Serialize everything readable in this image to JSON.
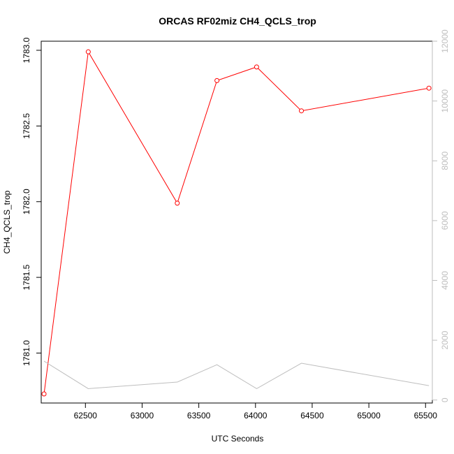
{
  "chart_data": {
    "type": "line",
    "title": "ORCAS RF02miz CH4_QCLS_trop",
    "xlabel": "UTC Seconds",
    "ylabel": "CH4_QCLS_trop",
    "xlim": [
      62110,
      65560
    ],
    "ylim": [
      1780.67,
      1783.06
    ],
    "x_ticks": [
      62500,
      63000,
      63500,
      64000,
      64500,
      65000,
      65500
    ],
    "y_ticks": [
      1781.0,
      1781.5,
      1782.0,
      1782.5,
      1783.0
    ],
    "y2_ticks": [
      0,
      2000,
      4000,
      6000,
      8000,
      10000,
      12000
    ],
    "y2lim": [
      -100,
      12000
    ],
    "grid": false,
    "series": [
      {
        "color": "#ff0000",
        "marker": "circle-open",
        "x": [
          62135,
          62525,
          63310,
          63660,
          64010,
          64405,
          65530
        ],
        "y": [
          1780.73,
          1782.99,
          1781.99,
          1782.8,
          1782.89,
          1782.6,
          1782.75
        ]
      },
      {
        "color": "#bebebe",
        "axis": "right",
        "x": [
          62135,
          62525,
          63310,
          63660,
          64010,
          64405,
          65530
        ],
        "y": [
          1300,
          380,
          600,
          1180,
          380,
          1230,
          480
        ]
      }
    ]
  }
}
